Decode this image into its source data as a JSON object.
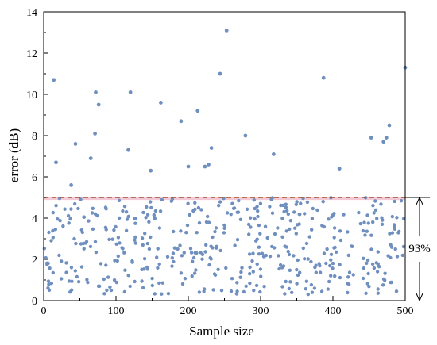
{
  "chart_data": {
    "type": "scatter",
    "xlabel": "Sample size",
    "ylabel": "error (dB)",
    "xlim": [
      0,
      500
    ],
    "ylim": [
      0,
      14
    ],
    "xticks": [
      0,
      100,
      200,
      300,
      400,
      500
    ],
    "yticks": [
      0,
      2,
      4,
      6,
      8,
      10,
      12,
      14
    ],
    "grid": false,
    "threshold": 5,
    "annotation": "93%",
    "colors": {
      "points": "#6f8fbf",
      "threshold_line": "#a0522d",
      "band": "#f3c9d6",
      "axis": "#000000"
    },
    "outliers": {
      "x": [
        14,
        17,
        38,
        44,
        65,
        71,
        72,
        76,
        117,
        120,
        148,
        162,
        190,
        200,
        213,
        223,
        228,
        232,
        244,
        253,
        279,
        318,
        387,
        409,
        453,
        470,
        474,
        478,
        500
      ],
      "y": [
        10.7,
        6.7,
        5.6,
        7.6,
        6.9,
        8.1,
        10.1,
        9.5,
        7.3,
        10.1,
        6.3,
        9.6,
        8.7,
        6.5,
        9.2,
        6.5,
        6.6,
        7.4,
        11.0,
        13.1,
        8.0,
        7.1,
        10.8,
        6.4,
        7.9,
        7.7,
        7.9,
        8.5,
        11.3
      ]
    },
    "bulk": {
      "count": 471,
      "x_range": [
        0,
        500
      ],
      "y_range": [
        0.3,
        5.0
      ]
    }
  }
}
